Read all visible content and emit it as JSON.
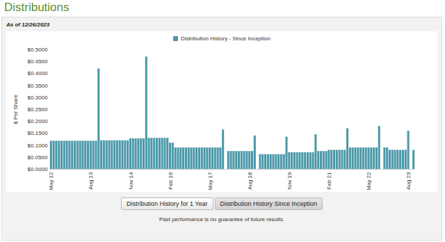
{
  "chart_data": {
    "type": "bar",
    "title": "Distributions",
    "subtitle": "As of 12/26/2023",
    "y_label": "$ Per Share",
    "legend": "top",
    "grid": false,
    "buttons": [
      "Distribution History for 1 Year",
      "Distribution History Since Inception"
    ],
    "footnote": "Past performance is no guarantee of future results.",
    "ylim": [
      0,
      0.5
    ],
    "yticks": [
      {
        "value": 0,
        "label": "$0.0000"
      },
      {
        "value": 0.05,
        "label": "$0.0500"
      },
      {
        "value": 0.1,
        "label": "$0.1000"
      },
      {
        "value": 0.15,
        "label": "$0.1500"
      },
      {
        "value": 0.2,
        "label": "$0.2000"
      },
      {
        "value": 0.25,
        "label": "$0.2500"
      },
      {
        "value": 0.3,
        "label": "$0.3000"
      },
      {
        "value": 0.35,
        "label": "$0.3500"
      },
      {
        "value": 0.4,
        "label": "$0.4000"
      },
      {
        "value": 0.45,
        "label": "$0.4500"
      },
      {
        "value": 0.5,
        "label": "$0.5000"
      }
    ],
    "categories": [
      "May 12",
      null,
      null,
      null,
      null,
      null,
      null,
      null,
      null,
      null,
      null,
      null,
      null,
      null,
      null,
      "Aug 13",
      null,
      null,
      null,
      null,
      null,
      null,
      null,
      null,
      null,
      null,
      null,
      null,
      null,
      null,
      "Nov 14",
      null,
      null,
      null,
      null,
      null,
      null,
      null,
      null,
      null,
      null,
      null,
      null,
      null,
      null,
      "Feb 16",
      null,
      null,
      null,
      null,
      null,
      null,
      null,
      null,
      null,
      null,
      null,
      null,
      null,
      null,
      "May 17",
      null,
      null,
      null,
      null,
      null,
      null,
      null,
      null,
      null,
      null,
      null,
      null,
      null,
      null,
      "Aug 18",
      null,
      null,
      null,
      null,
      null,
      null,
      null,
      null,
      null,
      null,
      null,
      null,
      null,
      null,
      "Nov 19",
      null,
      null,
      null,
      null,
      null,
      null,
      null,
      null,
      null,
      null,
      null,
      null,
      null,
      null,
      "Feb 21",
      null,
      null,
      null,
      null,
      null,
      null,
      null,
      null,
      null,
      null,
      null,
      null,
      null,
      null,
      "May 22",
      null,
      null,
      null,
      null,
      null,
      null,
      null,
      null,
      null,
      null,
      null,
      null,
      null,
      null,
      "Aug 23",
      null,
      null
    ],
    "series": [
      {
        "name": "Distribution History - Since Inception",
        "color": "#4a98a8",
        "values": [
          0.118,
          0.118,
          0.118,
          0.118,
          0.118,
          0.118,
          0.118,
          0.118,
          0.118,
          0.118,
          0.118,
          0.118,
          0.118,
          0.118,
          0.118,
          0.118,
          0.118,
          0.118,
          0.42,
          0.12,
          0.12,
          0.12,
          0.12,
          0.12,
          0.12,
          0.12,
          0.12,
          0.12,
          0.12,
          0.12,
          0.128,
          0.128,
          0.128,
          0.128,
          0.128,
          0.128,
          0.47,
          0.13,
          0.13,
          0.13,
          0.13,
          0.13,
          0.13,
          0.13,
          0.13,
          0.11,
          0.11,
          0.09,
          0.09,
          0.09,
          0.09,
          0.09,
          0.09,
          0.09,
          0.09,
          0.09,
          0.09,
          0.09,
          0.09,
          0.09,
          0.09,
          0.09,
          0.09,
          0.09,
          0.09,
          0.165,
          null,
          0.075,
          0.075,
          0.075,
          0.075,
          0.075,
          0.075,
          0.075,
          0.075,
          0.075,
          0.075,
          0.14,
          null,
          0.062,
          0.062,
          0.062,
          0.062,
          0.062,
          0.062,
          0.062,
          0.062,
          0.062,
          0.062,
          0.135,
          0.07,
          0.07,
          0.07,
          0.07,
          0.07,
          0.07,
          0.07,
          0.07,
          0.07,
          0.07,
          0.145,
          0.075,
          0.075,
          0.075,
          0.075,
          0.08,
          0.08,
          0.08,
          0.08,
          0.08,
          0.08,
          0.08,
          0.17,
          0.09,
          0.09,
          0.09,
          0.09,
          0.09,
          0.09,
          0.09,
          0.09,
          0.09,
          0.09,
          0.09,
          0.18,
          null,
          0.09,
          0.09,
          0.08,
          0.08,
          0.08,
          0.08,
          0.08,
          0.08,
          0.08,
          0.16,
          null,
          0.08
        ]
      }
    ]
  }
}
